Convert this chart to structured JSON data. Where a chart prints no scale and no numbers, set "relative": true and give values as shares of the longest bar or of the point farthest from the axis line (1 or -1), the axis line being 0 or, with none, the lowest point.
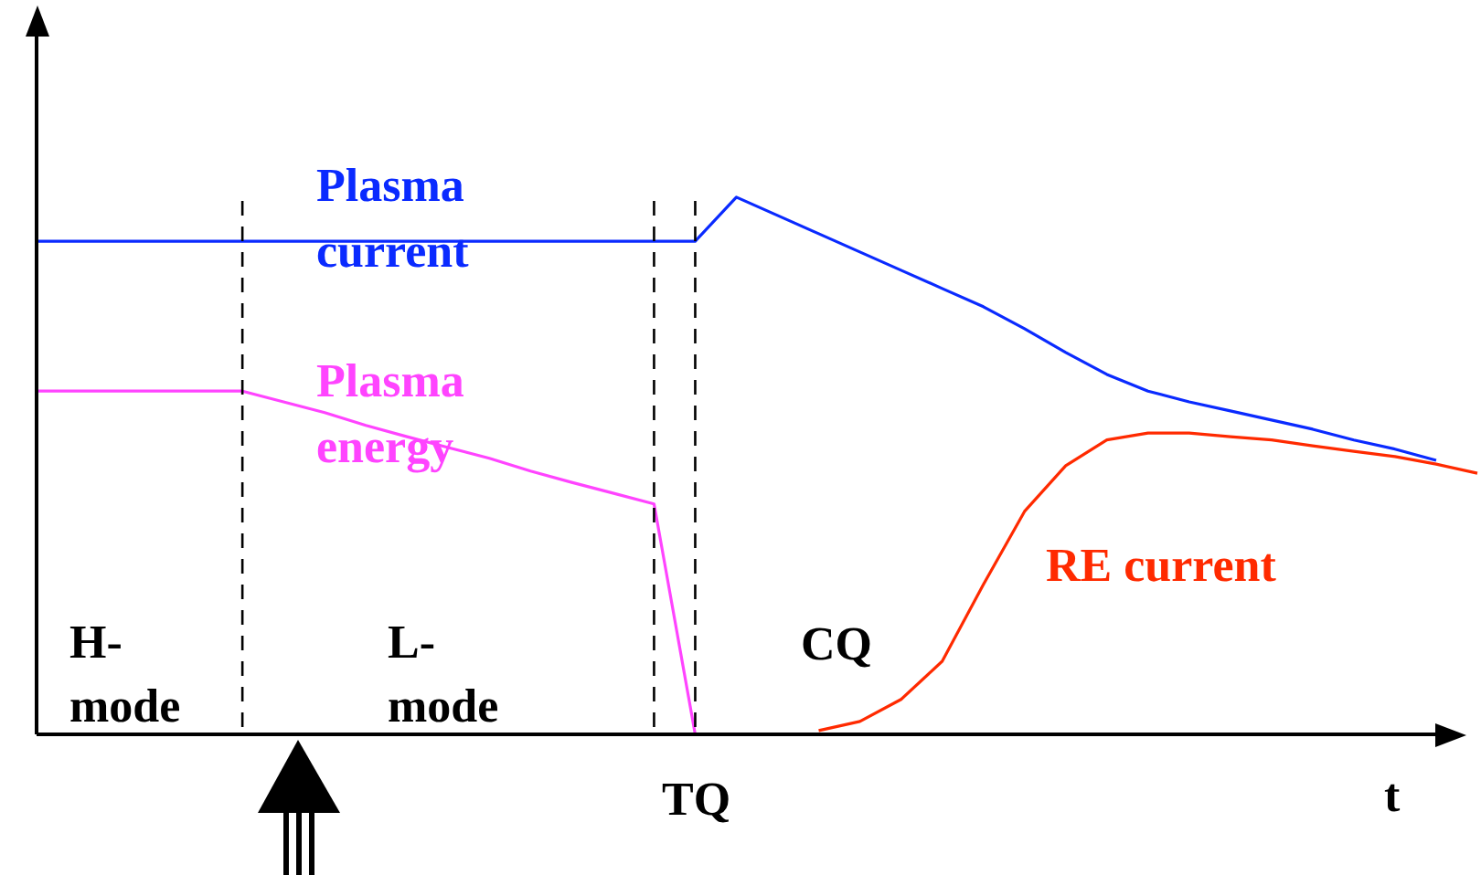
{
  "chart_data": {
    "type": "line",
    "relative": true,
    "xlabel": "t",
    "marker": "none",
    "line_style": "solid",
    "legend": false,
    "grid": "x",
    "categories": [
      null,
      null,
      null,
      null,
      null,
      null,
      null,
      null,
      null,
      null,
      null,
      null,
      null,
      null,
      null,
      null,
      null,
      null,
      null,
      null,
      null,
      null,
      null,
      null,
      null,
      null,
      null,
      null,
      null,
      null,
      null,
      null,
      null,
      null,
      null,
      null
    ],
    "series": [
      {
        "name": "Plasma\ncurrent",
        "color": "#0a2aff",
        "values": [
          0.918,
          0.918,
          0.918,
          0.918,
          0.918,
          0.918,
          0.918,
          0.918,
          0.918,
          0.918,
          0.918,
          0.918,
          0.918,
          0.918,
          0.918,
          0.918,
          0.918,
          1.0,
          0.966,
          0.932,
          0.898,
          0.864,
          0.83,
          0.796,
          0.755,
          0.711,
          0.67,
          0.639,
          0.619,
          0.602,
          0.585,
          0.568,
          0.548,
          0.531,
          0.51,
          null
        ]
      },
      {
        "name": "Plasma\nenergy",
        "color": "#ff44ff",
        "values": [
          0.639,
          0.639,
          0.639,
          0.639,
          0.639,
          0.639,
          0.619,
          0.599,
          0.575,
          0.554,
          0.534,
          0.514,
          0.49,
          0.469,
          0.449,
          0.429,
          0,
          null,
          null,
          null,
          null,
          null,
          null,
          null,
          null,
          null,
          null,
          null,
          null,
          null,
          null,
          null,
          null,
          null,
          null,
          null
        ]
      },
      {
        "name": "RE current",
        "color": "#ff2a00",
        "values": [
          null,
          null,
          null,
          null,
          null,
          null,
          null,
          null,
          null,
          null,
          null,
          null,
          null,
          null,
          null,
          null,
          null,
          null,
          null,
          0.007,
          0.024,
          0.065,
          0.136,
          0.279,
          0.415,
          0.5,
          0.548,
          0.561,
          0.561,
          0.554,
          0.548,
          0.537,
          0.527,
          0.517,
          0.503,
          0.486
        ]
      }
    ],
    "annotations": [
      "H-\nmode",
      "L-\nmode",
      "CQ",
      "TQ"
    ]
  }
}
